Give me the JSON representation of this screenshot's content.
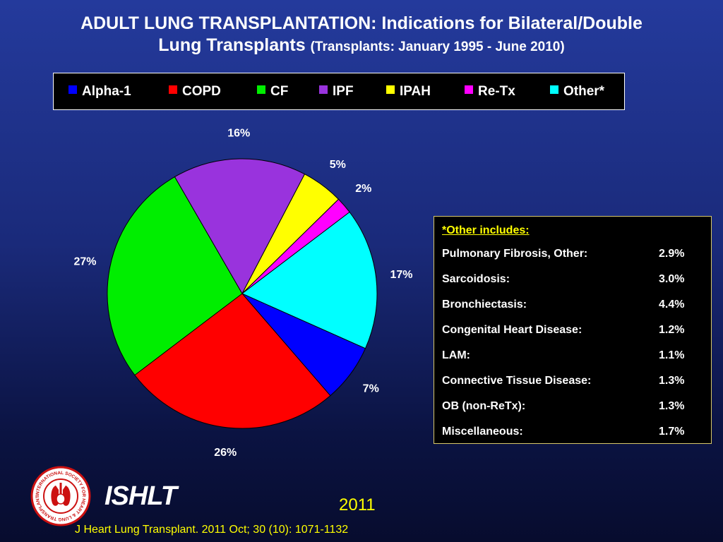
{
  "title": {
    "line1": "ADULT LUNG TRANSPLANTATION: Indications for Bilateral/Double",
    "line2_main": "Lung Transplants",
    "line2_sub": "(Transplants: January 1995 - June 2010)"
  },
  "chart_data": {
    "type": "pie",
    "title": "ADULT LUNG TRANSPLANTATION: Indications for Bilateral/Double Lung Transplants (Transplants: January 1995 - June 2010)",
    "legend_position": "top",
    "slices": [
      {
        "name": "Alpha-1",
        "value": 7,
        "label": "7%",
        "color": "#0000ff"
      },
      {
        "name": "COPD",
        "value": 26,
        "label": "26%",
        "color": "#ff0000"
      },
      {
        "name": "CF",
        "value": 27,
        "label": "27%",
        "color": "#00ee00"
      },
      {
        "name": "IPF",
        "value": 16,
        "label": "16%",
        "color": "#9933dd"
      },
      {
        "name": "IPAH",
        "value": 5,
        "label": "5%",
        "color": "#ffff00"
      },
      {
        "name": "Re-Tx",
        "value": 2,
        "label": "2%",
        "color": "#ff00ff"
      },
      {
        "name": "Other*",
        "value": 17,
        "label": "17%",
        "color": "#00ffff"
      }
    ]
  },
  "other_box": {
    "heading": "*Other includes:",
    "rows": [
      {
        "name": "Pulmonary Fibrosis, Other:",
        "value": "2.9%"
      },
      {
        "name": "Sarcoidosis:",
        "value": "3.0%"
      },
      {
        "name": "Bronchiectasis:",
        "value": "4.4%"
      },
      {
        "name": "Congenital Heart Disease:",
        "value": "1.2%"
      },
      {
        "name": "LAM:",
        "value": "1.1%"
      },
      {
        "name": "Connective Tissue Disease:",
        "value": "1.3%"
      },
      {
        "name": "OB (non-ReTx):",
        "value": "1.3%"
      },
      {
        "name": "Miscellaneous:",
        "value": "1.7%"
      }
    ]
  },
  "footer": {
    "brand": "ISHLT",
    "year": "2011",
    "citation": "J Heart Lung Transplant. 2011 Oct; 30 (10): 1071-1132"
  },
  "logo": {
    "text": "INTERNATIONAL SOCIETY FOR HEART & LUNG TRANSPLANTATION",
    "color": "#cc1111"
  }
}
